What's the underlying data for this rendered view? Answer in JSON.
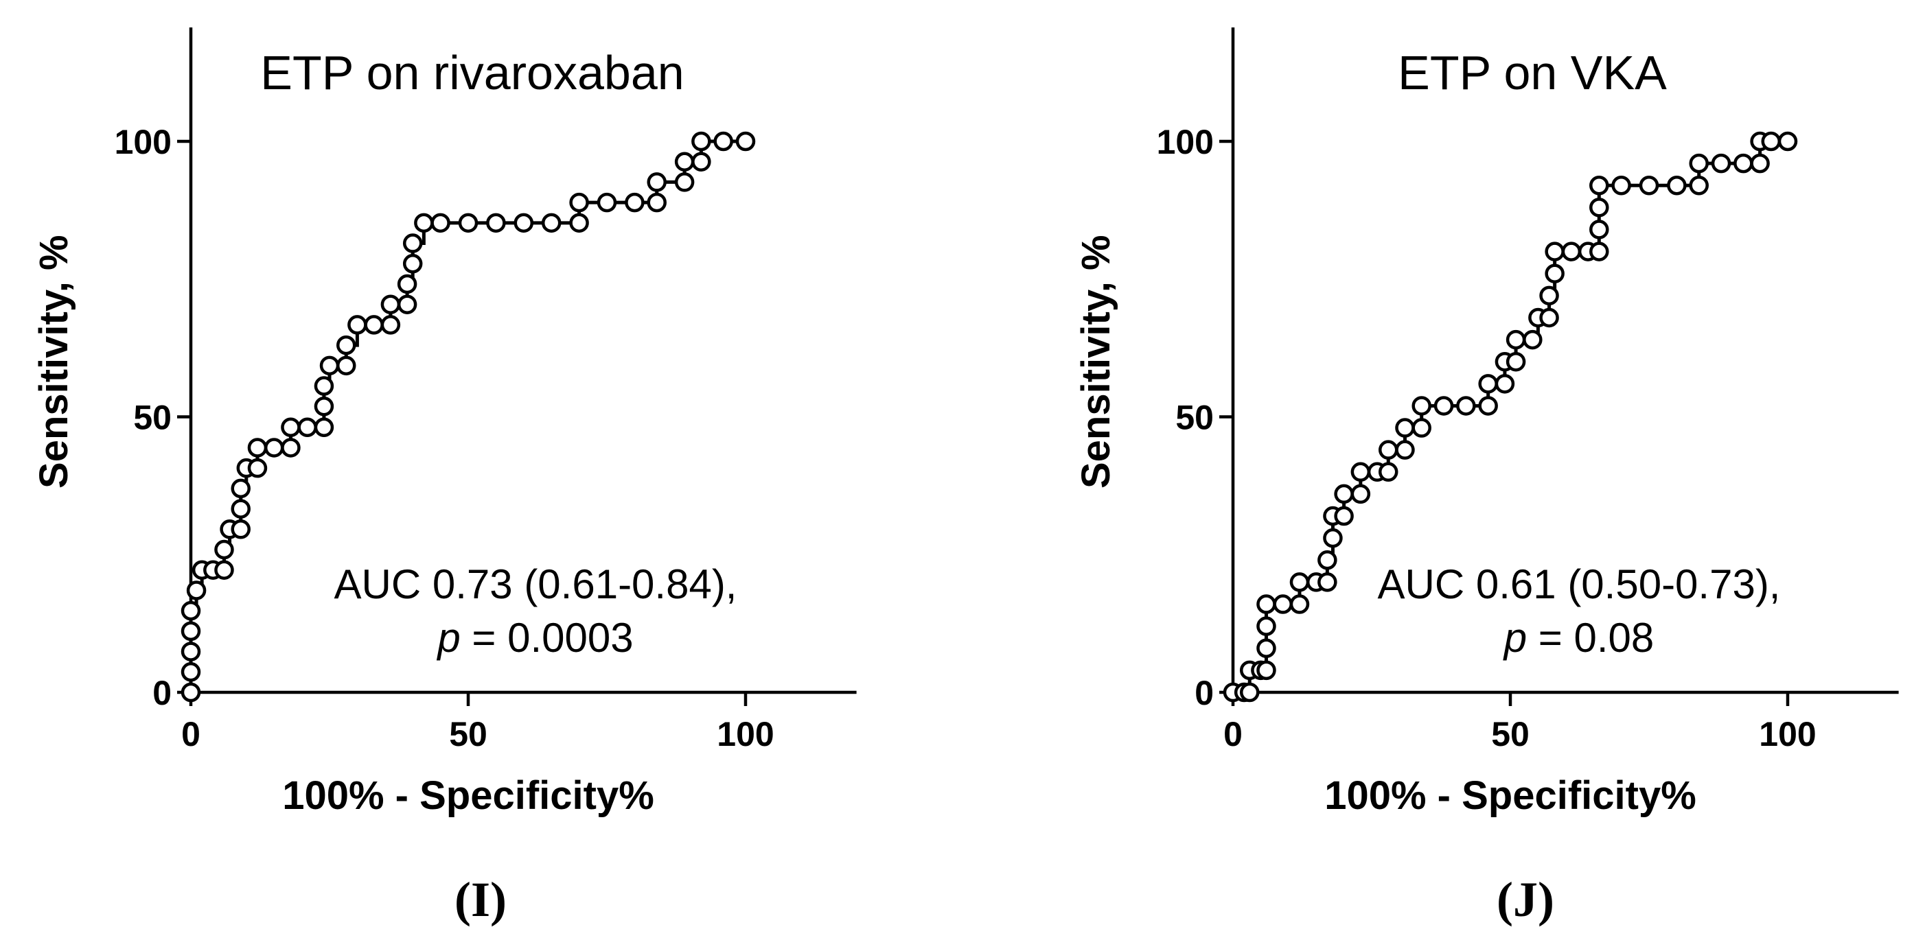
{
  "chart_data": [
    {
      "type": "line",
      "subtype": "roc-step",
      "title": "ETP on rivaroxaban",
      "xlabel": "100% - Specificity%",
      "ylabel": "Sensitivity, %",
      "xlim": [
        0,
        120
      ],
      "ylim": [
        0,
        120
      ],
      "xticks": [
        0,
        50,
        100
      ],
      "yticks": [
        0,
        50,
        100
      ],
      "annotation": {
        "auc_text": "AUC 0.73 (0.61-0.84),",
        "p_label": "p",
        "p_value_text": " = 0.0003"
      },
      "panel_label": "(I)",
      "points": [
        [
          0,
          0
        ],
        [
          0,
          3.7
        ],
        [
          0,
          7.4
        ],
        [
          0,
          11.1
        ],
        [
          0,
          14.8
        ],
        [
          1,
          18.5
        ],
        [
          2,
          22.2
        ],
        [
          4,
          22.2
        ],
        [
          6,
          22.2
        ],
        [
          6,
          25.9
        ],
        [
          7,
          29.6
        ],
        [
          9,
          29.6
        ],
        [
          9,
          33.3
        ],
        [
          9,
          37
        ],
        [
          10,
          40.7
        ],
        [
          12,
          40.7
        ],
        [
          12,
          44.4
        ],
        [
          15,
          44.4
        ],
        [
          18,
          44.4
        ],
        [
          18,
          48.1
        ],
        [
          21,
          48.1
        ],
        [
          24,
          48.1
        ],
        [
          24,
          51.9
        ],
        [
          24,
          55.6
        ],
        [
          25,
          59.3
        ],
        [
          28,
          59.3
        ],
        [
          28,
          63
        ],
        [
          30,
          66.7
        ],
        [
          33,
          66.7
        ],
        [
          36,
          66.7
        ],
        [
          36,
          70.4
        ],
        [
          39,
          70.4
        ],
        [
          39,
          74.1
        ],
        [
          40,
          77.8
        ],
        [
          40,
          81.5
        ],
        [
          42,
          85.2
        ],
        [
          45,
          85.2
        ],
        [
          50,
          85.2
        ],
        [
          55,
          85.2
        ],
        [
          60,
          85.2
        ],
        [
          65,
          85.2
        ],
        [
          70,
          85.2
        ],
        [
          70,
          88.9
        ],
        [
          75,
          88.9
        ],
        [
          80,
          88.9
        ],
        [
          84,
          88.9
        ],
        [
          84,
          92.6
        ],
        [
          89,
          92.6
        ],
        [
          89,
          96.3
        ],
        [
          92,
          96.3
        ],
        [
          92,
          100
        ],
        [
          96,
          100
        ],
        [
          100,
          100
        ]
      ]
    },
    {
      "type": "line",
      "subtype": "roc-step",
      "title": "ETP on VKA",
      "xlabel": "100% - Specificity%",
      "ylabel": "Sensitivity, %",
      "xlim": [
        0,
        120
      ],
      "ylim": [
        0,
        120
      ],
      "xticks": [
        0,
        50,
        100
      ],
      "yticks": [
        0,
        50,
        100
      ],
      "annotation": {
        "auc_text": "AUC 0.61 (0.50-0.73),",
        "p_label": "p",
        "p_value_text": " = 0.08"
      },
      "panel_label": "(J)",
      "points": [
        [
          0,
          0
        ],
        [
          2,
          0
        ],
        [
          3,
          0
        ],
        [
          3,
          4
        ],
        [
          5,
          4
        ],
        [
          6,
          4
        ],
        [
          6,
          8
        ],
        [
          6,
          12
        ],
        [
          6,
          16
        ],
        [
          9,
          16
        ],
        [
          12,
          16
        ],
        [
          12,
          20
        ],
        [
          15,
          20
        ],
        [
          17,
          20
        ],
        [
          17,
          24
        ],
        [
          18,
          28
        ],
        [
          18,
          32
        ],
        [
          20,
          32
        ],
        [
          20,
          36
        ],
        [
          23,
          36
        ],
        [
          23,
          40
        ],
        [
          26,
          40
        ],
        [
          28,
          40
        ],
        [
          28,
          44
        ],
        [
          31,
          44
        ],
        [
          31,
          48
        ],
        [
          34,
          48
        ],
        [
          34,
          52
        ],
        [
          38,
          52
        ],
        [
          42,
          52
        ],
        [
          46,
          52
        ],
        [
          46,
          56
        ],
        [
          49,
          56
        ],
        [
          49,
          60
        ],
        [
          51,
          60
        ],
        [
          51,
          64
        ],
        [
          54,
          64
        ],
        [
          55,
          68
        ],
        [
          57,
          68
        ],
        [
          57,
          72
        ],
        [
          58,
          76
        ],
        [
          58,
          80
        ],
        [
          61,
          80
        ],
        [
          64,
          80
        ],
        [
          66,
          80
        ],
        [
          66,
          84
        ],
        [
          66,
          88
        ],
        [
          66,
          92
        ],
        [
          70,
          92
        ],
        [
          75,
          92
        ],
        [
          80,
          92
        ],
        [
          84,
          92
        ],
        [
          84,
          96
        ],
        [
          88,
          96
        ],
        [
          92,
          96
        ],
        [
          95,
          96
        ],
        [
          95,
          100
        ],
        [
          97,
          100
        ],
        [
          100,
          100
        ]
      ]
    }
  ]
}
